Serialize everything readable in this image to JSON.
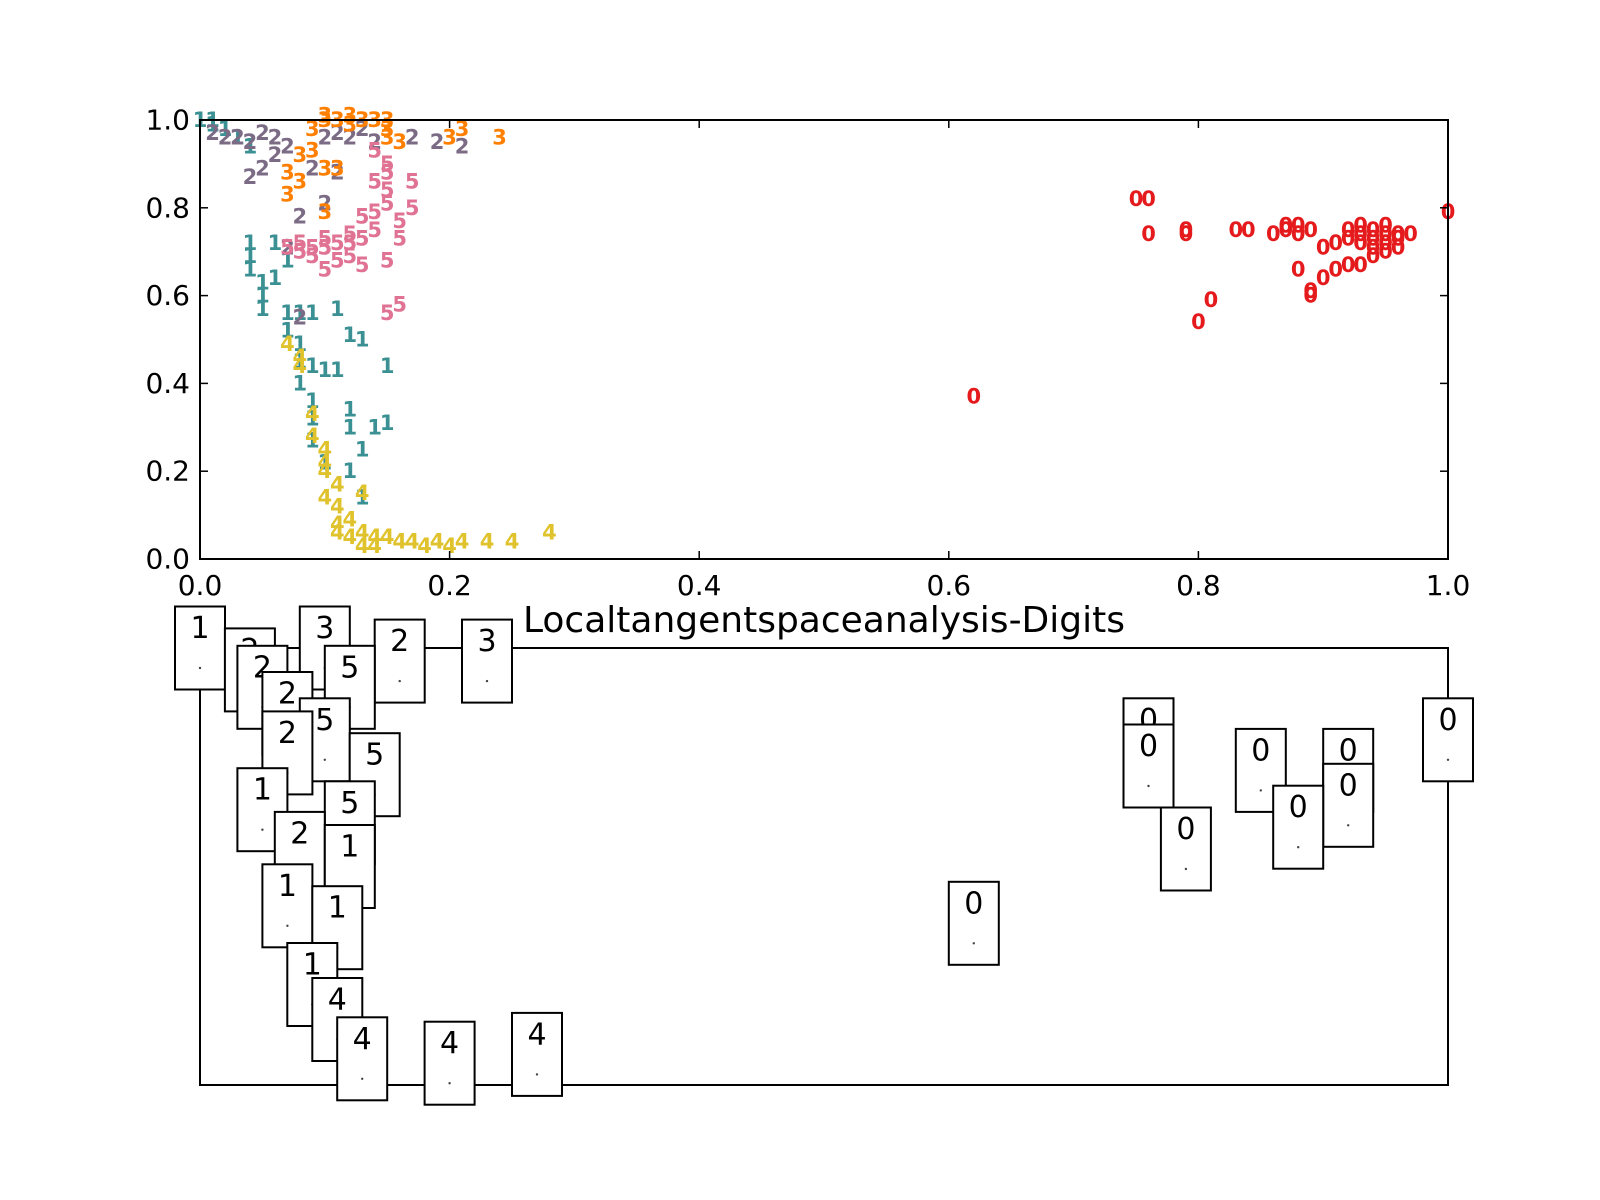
{
  "figure": {
    "title": "Localtangentspaceanalysis-Digits"
  },
  "chart_data": [
    {
      "type": "scatter",
      "title": "",
      "xlabel": "",
      "ylabel": "",
      "xlim": [
        0.0,
        1.0
      ],
      "ylim": [
        0.0,
        1.0
      ],
      "x_ticks": [
        "0.0",
        "0.2",
        "0.4",
        "0.6",
        "0.8",
        "1.0"
      ],
      "y_ticks": [
        "0.0",
        "0.2",
        "0.4",
        "0.6",
        "0.8",
        "1.0"
      ],
      "grid": false,
      "marker": "digit-text",
      "class_colors": {
        "0": "#e41a1c",
        "1": "#3a9092",
        "2": "#7c6b85",
        "3": "#ff7f00",
        "4": "#e0c32c",
        "5": "#e07394"
      },
      "series": [
        {
          "label": "0",
          "points": [
            [
              0.62,
              0.37
            ],
            [
              0.75,
              0.82
            ],
            [
              0.76,
              0.82
            ],
            [
              0.76,
              0.74
            ],
            [
              0.79,
              0.74
            ],
            [
              0.79,
              0.75
            ],
            [
              0.8,
              0.54
            ],
            [
              0.81,
              0.59
            ],
            [
              0.83,
              0.75
            ],
            [
              0.84,
              0.75
            ],
            [
              0.86,
              0.74
            ],
            [
              0.87,
              0.76
            ],
            [
              0.87,
              0.75
            ],
            [
              0.88,
              0.74
            ],
            [
              0.88,
              0.76
            ],
            [
              0.89,
              0.75
            ],
            [
              0.88,
              0.66
            ],
            [
              0.89,
              0.61
            ],
            [
              0.89,
              0.6
            ],
            [
              0.9,
              0.64
            ],
            [
              0.9,
              0.71
            ],
            [
              0.91,
              0.72
            ],
            [
              0.91,
              0.66
            ],
            [
              0.92,
              0.75
            ],
            [
              0.92,
              0.67
            ],
            [
              0.92,
              0.73
            ],
            [
              0.93,
              0.76
            ],
            [
              0.93,
              0.74
            ],
            [
              0.93,
              0.72
            ],
            [
              0.93,
              0.67
            ],
            [
              0.94,
              0.73
            ],
            [
              0.94,
              0.75
            ],
            [
              0.94,
              0.71
            ],
            [
              0.94,
              0.69
            ],
            [
              0.95,
              0.74
            ],
            [
              0.95,
              0.72
            ],
            [
              0.95,
              0.7
            ],
            [
              0.95,
              0.76
            ],
            [
              0.96,
              0.74
            ],
            [
              0.96,
              0.73
            ],
            [
              0.96,
              0.71
            ],
            [
              0.97,
              0.74
            ],
            [
              1.0,
              0.79
            ]
          ]
        },
        {
          "label": "1",
          "points": [
            [
              0.0,
              1.0
            ],
            [
              0.01,
              1.0
            ],
            [
              0.01,
              0.99
            ],
            [
              0.02,
              0.98
            ],
            [
              0.03,
              0.96
            ],
            [
              0.04,
              0.94
            ],
            [
              0.04,
              0.72
            ],
            [
              0.04,
              0.69
            ],
            [
              0.04,
              0.66
            ],
            [
              0.05,
              0.63
            ],
            [
              0.05,
              0.6
            ],
            [
              0.05,
              0.57
            ],
            [
              0.06,
              0.72
            ],
            [
              0.06,
              0.64
            ],
            [
              0.07,
              0.68
            ],
            [
              0.07,
              0.56
            ],
            [
              0.07,
              0.52
            ],
            [
              0.08,
              0.56
            ],
            [
              0.08,
              0.49
            ],
            [
              0.08,
              0.45
            ],
            [
              0.08,
              0.4
            ],
            [
              0.09,
              0.56
            ],
            [
              0.09,
              0.44
            ],
            [
              0.09,
              0.36
            ],
            [
              0.09,
              0.32
            ],
            [
              0.09,
              0.27
            ],
            [
              0.1,
              0.43
            ],
            [
              0.1,
              0.22
            ],
            [
              0.11,
              0.57
            ],
            [
              0.11,
              0.43
            ],
            [
              0.12,
              0.51
            ],
            [
              0.12,
              0.34
            ],
            [
              0.12,
              0.3
            ],
            [
              0.13,
              0.25
            ],
            [
              0.12,
              0.2
            ],
            [
              0.13,
              0.14
            ],
            [
              0.13,
              0.5
            ],
            [
              0.14,
              0.3
            ],
            [
              0.15,
              0.31
            ],
            [
              0.15,
              0.44
            ]
          ]
        },
        {
          "label": "2",
          "points": [
            [
              0.01,
              0.97
            ],
            [
              0.02,
              0.96
            ],
            [
              0.03,
              0.96
            ],
            [
              0.04,
              0.95
            ],
            [
              0.04,
              0.87
            ],
            [
              0.05,
              0.97
            ],
            [
              0.05,
              0.89
            ],
            [
              0.06,
              0.96
            ],
            [
              0.06,
              0.92
            ],
            [
              0.07,
              0.94
            ],
            [
              0.07,
              0.71
            ],
            [
              0.08,
              0.55
            ],
            [
              0.08,
              0.78
            ],
            [
              0.09,
              0.89
            ],
            [
              0.1,
              0.96
            ],
            [
              0.1,
              0.81
            ],
            [
              0.11,
              0.97
            ],
            [
              0.11,
              0.88
            ],
            [
              0.12,
              0.96
            ],
            [
              0.13,
              0.98
            ],
            [
              0.14,
              0.95
            ],
            [
              0.17,
              0.96
            ],
            [
              0.19,
              0.95
            ],
            [
              0.21,
              0.94
            ]
          ]
        },
        {
          "label": "3",
          "points": [
            [
              0.07,
              0.88
            ],
            [
              0.07,
              0.83
            ],
            [
              0.08,
              0.86
            ],
            [
              0.08,
              0.92
            ],
            [
              0.09,
              0.98
            ],
            [
              0.09,
              0.93
            ],
            [
              0.1,
              1.0
            ],
            [
              0.1,
              1.01
            ],
            [
              0.1,
              0.89
            ],
            [
              0.1,
              0.79
            ],
            [
              0.11,
              1.0
            ],
            [
              0.11,
              0.89
            ],
            [
              0.12,
              1.01
            ],
            [
              0.12,
              0.99
            ],
            [
              0.13,
              1.0
            ],
            [
              0.14,
              1.0
            ],
            [
              0.15,
              1.0
            ],
            [
              0.15,
              0.98
            ],
            [
              0.15,
              0.96
            ],
            [
              0.16,
              0.95
            ],
            [
              0.2,
              0.96
            ],
            [
              0.21,
              0.98
            ],
            [
              0.24,
              0.96
            ]
          ]
        },
        {
          "label": "4",
          "points": [
            [
              0.07,
              0.49
            ],
            [
              0.08,
              0.44
            ],
            [
              0.08,
              0.46
            ],
            [
              0.09,
              0.33
            ],
            [
              0.09,
              0.28
            ],
            [
              0.1,
              0.25
            ],
            [
              0.1,
              0.22
            ],
            [
              0.1,
              0.2
            ],
            [
              0.1,
              0.14
            ],
            [
              0.11,
              0.17
            ],
            [
              0.11,
              0.12
            ],
            [
              0.11,
              0.08
            ],
            [
              0.11,
              0.06
            ],
            [
              0.12,
              0.09
            ],
            [
              0.12,
              0.05
            ],
            [
              0.13,
              0.06
            ],
            [
              0.13,
              0.03
            ],
            [
              0.13,
              0.15
            ],
            [
              0.14,
              0.05
            ],
            [
              0.14,
              0.03
            ],
            [
              0.15,
              0.05
            ],
            [
              0.16,
              0.04
            ],
            [
              0.17,
              0.04
            ],
            [
              0.18,
              0.03
            ],
            [
              0.19,
              0.04
            ],
            [
              0.2,
              0.03
            ],
            [
              0.21,
              0.04
            ],
            [
              0.23,
              0.04
            ],
            [
              0.25,
              0.04
            ],
            [
              0.28,
              0.06
            ]
          ]
        },
        {
          "label": "5",
          "points": [
            [
              0.07,
              0.71
            ],
            [
              0.08,
              0.72
            ],
            [
              0.08,
              0.7
            ],
            [
              0.09,
              0.71
            ],
            [
              0.09,
              0.69
            ],
            [
              0.1,
              0.71
            ],
            [
              0.1,
              0.66
            ],
            [
              0.1,
              0.73
            ],
            [
              0.11,
              0.72
            ],
            [
              0.11,
              0.68
            ],
            [
              0.12,
              0.72
            ],
            [
              0.12,
              0.74
            ],
            [
              0.12,
              0.69
            ],
            [
              0.13,
              0.78
            ],
            [
              0.13,
              0.73
            ],
            [
              0.13,
              0.67
            ],
            [
              0.14,
              0.79
            ],
            [
              0.14,
              0.75
            ],
            [
              0.14,
              0.86
            ],
            [
              0.15,
              0.81
            ],
            [
              0.15,
              0.84
            ],
            [
              0.15,
              0.88
            ],
            [
              0.15,
              0.68
            ],
            [
              0.15,
              0.56
            ],
            [
              0.16,
              0.77
            ],
            [
              0.16,
              0.73
            ],
            [
              0.16,
              0.58
            ],
            [
              0.17,
              0.8
            ],
            [
              0.17,
              0.86
            ],
            [
              0.14,
              0.93
            ],
            [
              0.15,
              0.9
            ]
          ]
        }
      ]
    },
    {
      "type": "scatter",
      "title": "",
      "xlim": [
        0.0,
        1.0
      ],
      "ylim": [
        0.0,
        1.0
      ],
      "marker": "image-thumbnail",
      "thumbnails": [
        {
          "label": "1",
          "x": 0.0,
          "y": 1.0
        },
        {
          "label": "2",
          "x": 0.04,
          "y": 0.95
        },
        {
          "label": "3",
          "x": 0.1,
          "y": 1.0
        },
        {
          "label": "2",
          "x": 0.16,
          "y": 0.97
        },
        {
          "label": "3",
          "x": 0.23,
          "y": 0.97
        },
        {
          "label": "2",
          "x": 0.05,
          "y": 0.91
        },
        {
          "label": "5",
          "x": 0.12,
          "y": 0.91
        },
        {
          "label": "2",
          "x": 0.07,
          "y": 0.85
        },
        {
          "label": "5",
          "x": 0.1,
          "y": 0.79
        },
        {
          "label": "2",
          "x": 0.07,
          "y": 0.76
        },
        {
          "label": "5",
          "x": 0.14,
          "y": 0.71
        },
        {
          "label": "1",
          "x": 0.05,
          "y": 0.63
        },
        {
          "label": "5",
          "x": 0.12,
          "y": 0.6
        },
        {
          "label": "2",
          "x": 0.08,
          "y": 0.53
        },
        {
          "label": "1",
          "x": 0.12,
          "y": 0.5
        },
        {
          "label": "1",
          "x": 0.07,
          "y": 0.41
        },
        {
          "label": "1",
          "x": 0.11,
          "y": 0.36
        },
        {
          "label": "1",
          "x": 0.09,
          "y": 0.23
        },
        {
          "label": "4",
          "x": 0.11,
          "y": 0.15
        },
        {
          "label": "4",
          "x": 0.13,
          "y": 0.06
        },
        {
          "label": "4",
          "x": 0.2,
          "y": 0.05
        },
        {
          "label": "4",
          "x": 0.27,
          "y": 0.07
        },
        {
          "label": "0",
          "x": 0.62,
          "y": 0.37
        },
        {
          "label": "0",
          "x": 0.76,
          "y": 0.79
        },
        {
          "label": "0",
          "x": 0.76,
          "y": 0.73
        },
        {
          "label": "0",
          "x": 0.79,
          "y": 0.54
        },
        {
          "label": "0",
          "x": 0.85,
          "y": 0.72
        },
        {
          "label": "0",
          "x": 0.92,
          "y": 0.72
        },
        {
          "label": "0",
          "x": 0.92,
          "y": 0.64
        },
        {
          "label": "0",
          "x": 0.88,
          "y": 0.59
        },
        {
          "label": "0",
          "x": 1.0,
          "y": 0.79
        }
      ]
    }
  ]
}
